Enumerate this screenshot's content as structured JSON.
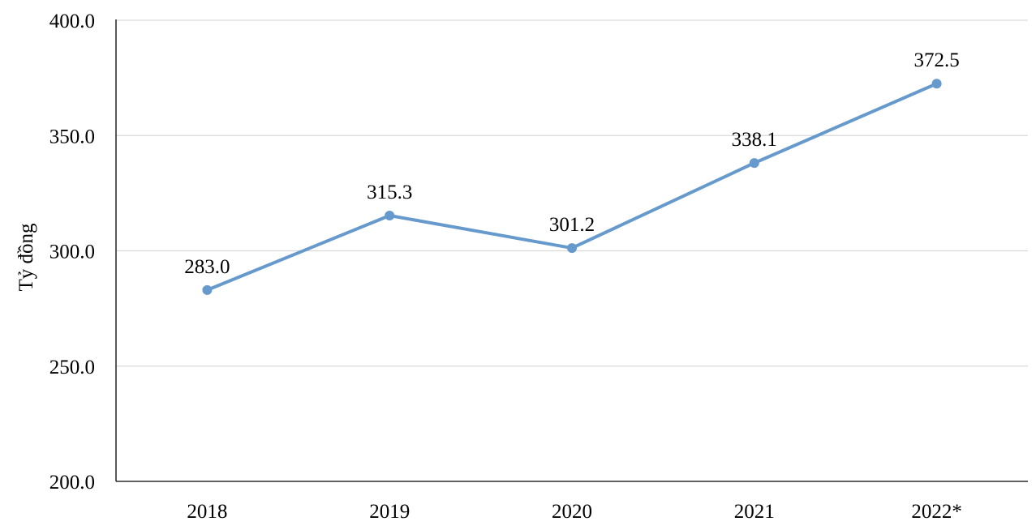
{
  "chart_data": {
    "type": "line",
    "title": "",
    "xlabel": "",
    "ylabel": "Tỷ đồng",
    "categories": [
      "2018",
      "2019",
      "2020",
      "2021",
      "2022*"
    ],
    "series": [
      {
        "values": [
          283.0,
          315.3,
          301.2,
          338.1,
          372.5
        ],
        "value_labels": [
          "283.0",
          "315.3",
          "301.2",
          "338.1",
          "372.5"
        ],
        "color": "#6699CC"
      }
    ],
    "y_ticks": [
      "200.0",
      "250.0",
      "300.0",
      "350.0",
      "400.0"
    ],
    "ylim": [
      200,
      400
    ],
    "grid": true,
    "grid_color": "#D9D9D9",
    "axis_color": "#000000",
    "marker": "circle"
  }
}
